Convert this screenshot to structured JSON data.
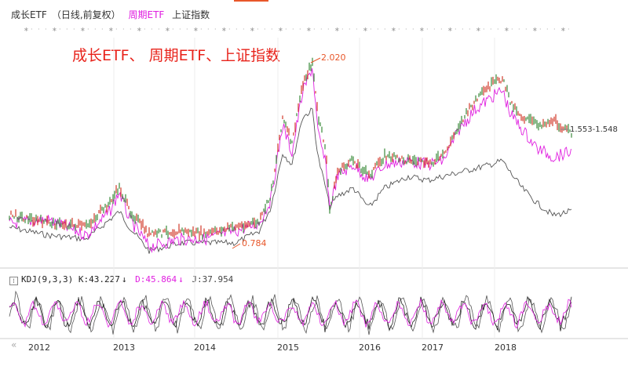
{
  "legend": {
    "series1": "成长ETF",
    "params": "（日线,前复权）",
    "series2": "周期ETF",
    "series3": "上证指数"
  },
  "overlay_title": "成长ETF、 周期ETF、上证指数",
  "kdj": {
    "label": "KDJ(9,3,3)",
    "k": "K:43.227",
    "d": "D:45.864",
    "j": "J:37.954",
    "arrow": "↓"
  },
  "nav": "«",
  "colors": {
    "growth": "#3a8a3a",
    "growth_down": "#d23a2a",
    "cycle": "#e020e0",
    "index": "#555555",
    "axis": "#cccccc",
    "annotation": "#e8572a"
  },
  "chart_data": {
    "type": "line",
    "x": [
      "2012",
      "2013",
      "2014",
      "2015",
      "2016",
      "2017",
      "2018"
    ],
    "annotations": [
      {
        "label": "2.020"
      },
      {
        "label": "0.784"
      },
      {
        "label": "1.553-1.548"
      }
    ],
    "series": [
      {
        "name": "成长ETF"
      },
      {
        "name": "周期ETF"
      },
      {
        "name": "上证指数"
      }
    ]
  }
}
